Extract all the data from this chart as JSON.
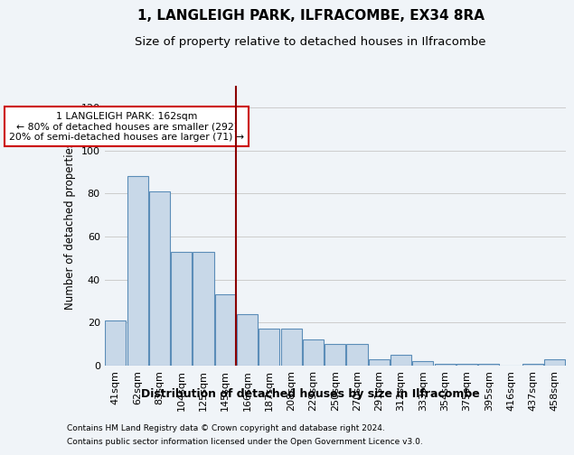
{
  "title1": "1, LANGLEIGH PARK, ILFRACOMBE, EX34 8RA",
  "title2": "Size of property relative to detached houses in Ilfracombe",
  "xlabel": "Distribution of detached houses by size in Ilfracombe",
  "ylabel": "Number of detached properties",
  "categories": [
    "41sqm",
    "62sqm",
    "83sqm",
    "104sqm",
    "125sqm",
    "145sqm",
    "166sqm",
    "187sqm",
    "208sqm",
    "229sqm",
    "250sqm",
    "270sqm",
    "291sqm",
    "312sqm",
    "333sqm",
    "354sqm",
    "375sqm",
    "395sqm",
    "416sqm",
    "437sqm",
    "458sqm"
  ],
  "values": [
    21,
    88,
    81,
    53,
    53,
    33,
    24,
    17,
    17,
    12,
    10,
    10,
    3,
    5,
    2,
    1,
    1,
    1,
    0,
    1,
    3
  ],
  "bar_color": "#c8d8e8",
  "bar_edge_color": "#5b8db8",
  "highlight_bar_index": 5,
  "vline_x_index": 5,
  "vline_color": "#8b0000",
  "annotation_text": "1 LANGLEIGH PARK: 162sqm\n← 80% of detached houses are smaller (292)\n20% of semi-detached houses are larger (71) →",
  "annotation_box_color": "#ffffff",
  "annotation_box_edge_color": "#cc0000",
  "ylim": [
    0,
    130
  ],
  "yticks": [
    0,
    20,
    40,
    60,
    80,
    100,
    120
  ],
  "grid_color": "#cccccc",
  "footnote1": "Contains HM Land Registry data © Crown copyright and database right 2024.",
  "footnote2": "Contains public sector information licensed under the Open Government Licence v3.0.",
  "bg_color": "#f0f4f8"
}
